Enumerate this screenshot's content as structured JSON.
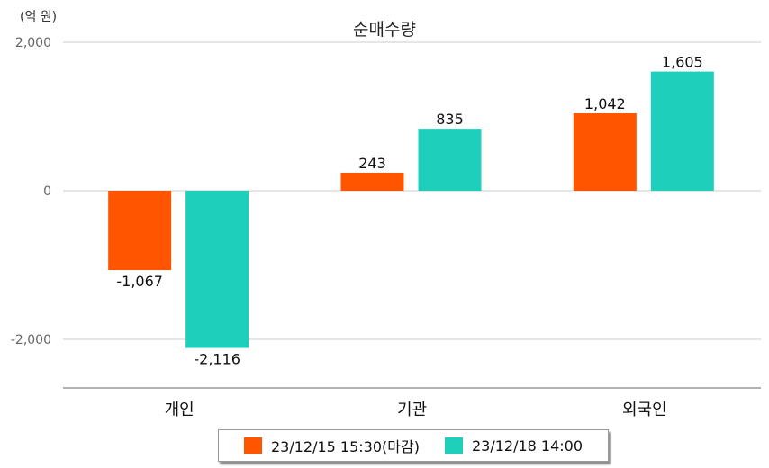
{
  "chart_data": {
    "type": "bar",
    "title": "순매수량",
    "unit_label": "(억 원)",
    "categories": [
      "개인",
      "기관",
      "외국인"
    ],
    "series": [
      {
        "name": "23/12/15 15:30(마감)",
        "color": "#ff5400",
        "values": [
          -1067,
          243,
          1042
        ]
      },
      {
        "name": "23/12/18 14:00",
        "color": "#1ecfbb",
        "values": [
          -2116,
          835,
          1605
        ]
      }
    ],
    "value_labels": [
      [
        "-1,067",
        "243",
        "1,042"
      ],
      [
        "-2,116",
        "835",
        "1,605"
      ]
    ],
    "yticks": [
      2000,
      0,
      -2000
    ],
    "ytick_labels": [
      "2,000",
      "0",
      "-2,000"
    ],
    "ylim": [
      -2650,
      2000
    ],
    "grid": true,
    "legend_position": "bottom"
  }
}
